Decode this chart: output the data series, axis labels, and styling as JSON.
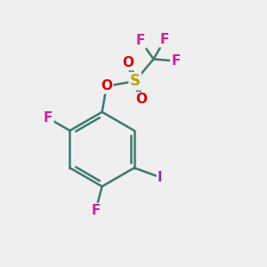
{
  "bg_color": "#efefef",
  "bond_color": "#3d7a6e",
  "bond_width": 1.8,
  "atom_colors": {
    "F": "#d020a0",
    "O": "#dd0000",
    "S": "#b8a800",
    "I": "#9030b0",
    "C": "#000000"
  },
  "font_sizes": {
    "F": 11,
    "O": 11,
    "S": 12,
    "I": 11
  }
}
